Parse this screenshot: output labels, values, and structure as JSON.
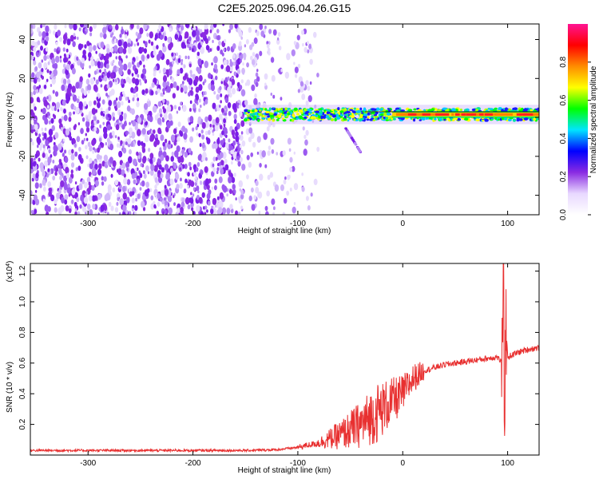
{
  "title": "C2E5.2025.096.04.26.G15",
  "chart_data": [
    {
      "type": "heatmap",
      "xlabel": "Height of straight line (km)",
      "ylabel": "Frequency (Hz)",
      "xlim": [
        -355,
        130
      ],
      "ylim": [
        -50,
        48
      ],
      "x_ticks": [
        -300,
        -200,
        -100,
        0,
        100
      ],
      "y_ticks": [
        -40,
        -20,
        0,
        20,
        40
      ],
      "colorbar": {
        "label": "Normalized spectral amplitude",
        "range": [
          0,
          1
        ],
        "ticks": [
          "0.0",
          "0.2",
          "0.4",
          "0.6",
          "0.8"
        ],
        "colormap": [
          "#ffffff",
          "#e8d8ff",
          "#8a2be2",
          "#0000ff",
          "#00e5ff",
          "#00ff00",
          "#ffff00",
          "#ff8c00",
          "#ff0000",
          "#ff1493"
        ]
      },
      "features": {
        "noise_region_x": [
          -355,
          -80
        ],
        "noise_dense_x": [
          -355,
          -150
        ],
        "signal_band": {
          "x_start": -150,
          "x_end": 130,
          "freq_center": 1.5,
          "freq_halfwidth": 3
        },
        "bright_core_x": [
          -10,
          130
        ],
        "spur": {
          "x": [
            -55,
            -40
          ],
          "freq": [
            -5,
            -18
          ]
        }
      }
    },
    {
      "type": "line",
      "xlabel": "Height of straight line (km)",
      "ylabel": "SNR (10 * v/v)",
      "y_multiplier": "(x10^4)",
      "xlim": [
        -355,
        130
      ],
      "ylim": [
        0,
        1.25
      ],
      "x_ticks": [
        -300,
        -200,
        -100,
        0,
        100
      ],
      "y_ticks": [
        "0.2",
        "0.4",
        "0.6",
        "0.8",
        "1.0",
        "1.2"
      ],
      "color": "#e83030",
      "series": [
        {
          "x": [
            -355,
            -300,
            -250,
            -200,
            -150,
            -120,
            -100,
            -80,
            -60,
            -40,
            -30,
            -20,
            -10,
            0,
            10,
            20,
            30,
            40,
            60,
            80,
            90,
            95,
            96,
            97,
            98,
            100,
            110,
            120,
            130
          ],
          "y": [
            0.03,
            0.03,
            0.03,
            0.03,
            0.03,
            0.035,
            0.05,
            0.08,
            0.13,
            0.2,
            0.25,
            0.3,
            0.35,
            0.4,
            0.5,
            0.55,
            0.57,
            0.59,
            0.61,
            0.63,
            0.64,
            0.6,
            1.25,
            0.15,
            0.9,
            0.64,
            0.67,
            0.69,
            0.7
          ]
        }
      ]
    }
  ]
}
